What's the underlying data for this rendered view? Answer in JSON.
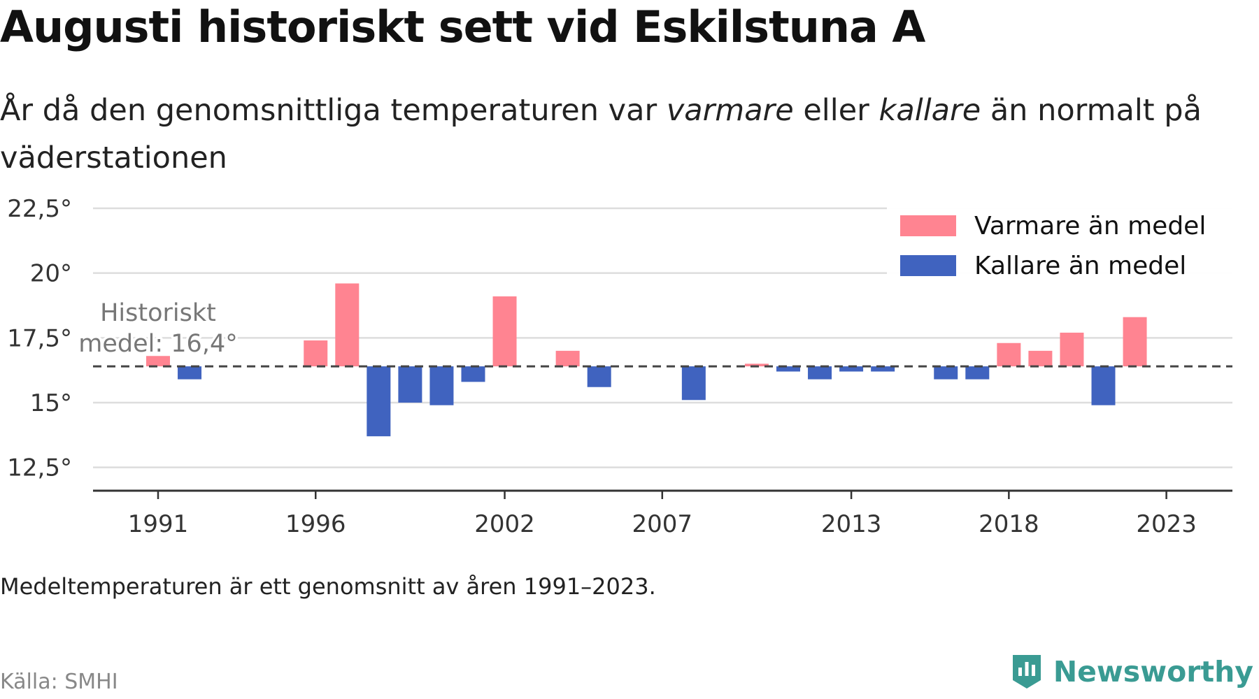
{
  "title": "Augusti historiskt sett vid Eskilstuna A",
  "subtitle": {
    "part1": "År då den genomsnittliga temperaturen var ",
    "emph1": "varmare",
    "part2": " eller ",
    "emph2": "kallare",
    "part3": " än normalt på väderstationen"
  },
  "note": "Medeltemperaturen är ett genomsnitt av åren 1991–2023.",
  "source": "Källa: SMHI",
  "brand": "Newsworthy",
  "colors": {
    "warmer": "#ff8491",
    "colder": "#4063bf",
    "brand": "#3a9b93"
  },
  "chart_data": {
    "type": "bar",
    "baseline": 16.4,
    "baseline_annotation": [
      "Historiskt",
      "medel: 16,4°"
    ],
    "x": [
      1991,
      1992,
      1993,
      1994,
      1995,
      1996,
      1997,
      1998,
      1999,
      2000,
      2001,
      2002,
      2003,
      2004,
      2005,
      2006,
      2007,
      2008,
      2009,
      2010,
      2011,
      2012,
      2013,
      2014,
      2015,
      2016,
      2017,
      2018,
      2019,
      2020,
      2021,
      2022,
      2023
    ],
    "values": [
      16.8,
      15.9,
      null,
      null,
      null,
      17.4,
      19.6,
      13.7,
      15.0,
      14.9,
      15.8,
      19.1,
      null,
      17.0,
      15.6,
      null,
      null,
      15.1,
      null,
      16.5,
      16.2,
      15.9,
      16.2,
      16.2,
      null,
      15.9,
      15.9,
      17.3,
      17.0,
      17.7,
      14.9,
      18.3,
      null
    ],
    "xticks": [
      1991,
      1996,
      2002,
      2007,
      2013,
      2018,
      2023
    ],
    "xtick_labels": [
      "1991",
      "1996",
      "2002",
      "2007",
      "2013",
      "2018",
      "2023"
    ],
    "yticks": [
      12.5,
      15,
      17.5,
      20,
      22.5
    ],
    "ytick_labels": [
      "12,5°",
      "15°",
      "17,5°",
      "20°",
      "22,5°"
    ],
    "ylim": [
      11.6,
      22.5
    ],
    "legend": {
      "position": "top-right",
      "entries": [
        {
          "label": "Varmare än medel",
          "key": "warmer"
        },
        {
          "label": "Kallare än medel",
          "key": "colder"
        }
      ]
    },
    "grid": true
  }
}
